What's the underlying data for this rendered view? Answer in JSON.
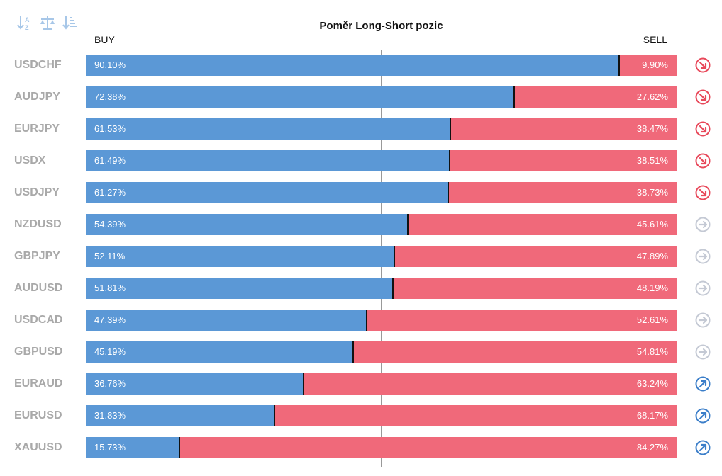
{
  "title": "Poměr Long-Short pozic",
  "buy_label": "BUY",
  "sell_label": "SELL",
  "toolbar": [
    {
      "name": "sort-alpha-icon",
      "tooltip": ""
    },
    {
      "name": "balance-scale-icon",
      "tooltip": ""
    },
    {
      "name": "sort-amount-icon",
      "tooltip": ""
    }
  ],
  "colors": {
    "buy": "#5b98d6",
    "sell": "#f0697a",
    "down": "#e8485a",
    "neutral": "#c4c9d4",
    "up": "#3b7ec9"
  },
  "chart_data": {
    "type": "bar",
    "orientation": "horizontal",
    "stacked": true,
    "categories": [
      "USDCHF",
      "AUDJPY",
      "EURJPY",
      "USDX",
      "USDJPY",
      "NZDUSD",
      "GBPJPY",
      "AUDUSD",
      "USDCAD",
      "GBPUSD",
      "EURAUD",
      "EURUSD",
      "XAUUSD"
    ],
    "series": [
      {
        "name": "BUY",
        "values": [
          90.1,
          72.38,
          61.53,
          61.49,
          61.27,
          54.39,
          52.11,
          51.81,
          47.39,
          45.19,
          36.76,
          31.83,
          15.73
        ]
      },
      {
        "name": "SELL",
        "values": [
          9.9,
          27.62,
          38.47,
          38.51,
          38.73,
          45.61,
          47.89,
          48.19,
          52.61,
          54.81,
          63.24,
          68.17,
          84.27
        ]
      }
    ],
    "labels": {
      "buy": [
        "90.10%",
        "72.38%",
        "61.53%",
        "61.49%",
        "61.27%",
        "54.39%",
        "52.11%",
        "51.81%",
        "47.39%",
        "45.19%",
        "36.76%",
        "31.83%",
        "15.73%"
      ],
      "sell": [
        "9.90%",
        "27.62%",
        "38.47%",
        "38.51%",
        "38.73%",
        "45.61%",
        "47.89%",
        "48.19%",
        "52.61%",
        "54.81%",
        "63.24%",
        "68.17%",
        "84.27%"
      ]
    },
    "signals": [
      "down",
      "down",
      "down",
      "down",
      "down",
      "neutral",
      "neutral",
      "neutral",
      "neutral",
      "neutral",
      "up",
      "up",
      "up"
    ],
    "xlim": [
      0,
      100
    ],
    "reference_line": 50
  }
}
